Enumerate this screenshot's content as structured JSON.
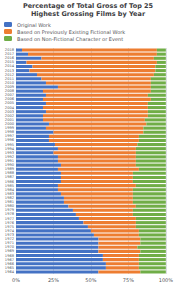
{
  "chart_data": {
    "type": "bar",
    "orientation": "horizontal",
    "stacked": true,
    "title": "Percentage of Total Gross of Top 25\nHighest Grossing Films by Year",
    "categories": [
      "2018",
      "2017",
      "2016",
      "2015",
      "2014",
      "2013",
      "2012",
      "2011",
      "2010",
      "2009",
      "2008",
      "2007",
      "2006",
      "2005",
      "2004",
      "2003",
      "2002",
      "2001",
      "2000",
      "1999",
      "1998",
      "1997",
      "1996",
      "1995",
      "1994",
      "1993",
      "1992",
      "1991",
      "1990",
      "1989",
      "1988",
      "1987",
      "1986",
      "1985",
      "1984",
      "1983",
      "1982",
      "1981",
      "1980",
      "1979",
      "1978",
      "1977",
      "1976",
      "1975",
      "1974",
      "1973",
      "1972",
      "1971",
      "1970",
      "1969",
      "1968",
      "1967",
      "1966",
      "1965",
      "1964"
    ],
    "series": [
      {
        "name": "Original Work",
        "color": "#4472c4",
        "values": [
          4,
          8,
          17,
          7,
          11,
          9,
          14,
          17,
          20,
          28,
          18,
          20,
          18,
          20,
          18,
          20,
          18,
          18,
          22,
          20,
          25,
          22,
          22,
          26,
          28,
          25,
          28,
          28,
          30,
          28,
          30,
          30,
          30,
          28,
          28,
          30,
          32,
          32,
          35,
          38,
          40,
          42,
          45,
          48,
          50,
          52,
          55,
          55,
          55,
          55,
          58,
          58,
          60,
          60,
          55
        ]
      },
      {
        "name": "Based on Previously Existing Fictional Work",
        "color": "#ed7d31",
        "values": [
          90,
          86,
          75,
          87,
          82,
          84,
          78,
          73,
          70,
          62,
          72,
          68,
          72,
          68,
          70,
          68,
          70,
          68,
          65,
          65,
          60,
          60,
          60,
          55,
          52,
          55,
          52,
          52,
          50,
          54,
          48,
          48,
          48,
          52,
          50,
          48,
          46,
          46,
          45,
          40,
          38,
          38,
          35,
          32,
          32,
          30,
          28,
          28,
          26,
          28,
          24,
          24,
          22,
          22,
          28
        ]
      },
      {
        "name": "Based on Non-Fictional Character or Event",
        "color": "#70ad47",
        "values": [
          6,
          6,
          8,
          6,
          7,
          7,
          8,
          10,
          10,
          10,
          10,
          12,
          10,
          12,
          12,
          12,
          12,
          14,
          13,
          15,
          15,
          18,
          18,
          19,
          20,
          20,
          20,
          20,
          20,
          18,
          22,
          22,
          22,
          20,
          22,
          22,
          22,
          22,
          20,
          22,
          22,
          20,
          20,
          20,
          18,
          18,
          17,
          17,
          19,
          17,
          18,
          18,
          18,
          18,
          17
        ]
      }
    ],
    "xlim": [
      0,
      100
    ],
    "xticks": [
      {
        "value": 0,
        "label": "0%"
      },
      {
        "value": 25,
        "label": "25%"
      },
      {
        "value": 50,
        "label": "50%"
      },
      {
        "value": 75,
        "label": "75%"
      },
      {
        "value": 100,
        "label": "100%"
      }
    ],
    "grid": true,
    "legend": "top-left"
  }
}
